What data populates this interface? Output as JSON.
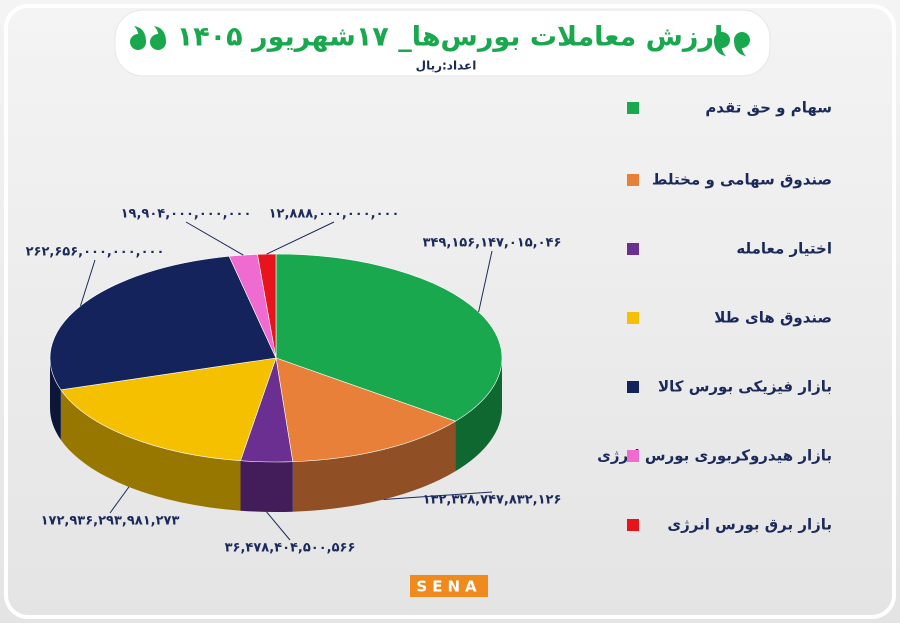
{
  "chart_data": {
    "type": "pie",
    "title": "ارزش معاملات بورس‌ها_ ۱۷شهریور ۱۴۰۵",
    "subtitle": "اعداد:ریال",
    "logo": "SENA",
    "categories": [
      "سهام و حق تقدم",
      "صندوق سهامی و مختلط",
      "اختیار معامله",
      "صندوق های طلا",
      "بازار فیزیکی بورس کالا",
      "بازار هیدروکربوری بورس انرژی",
      "بازار برق بورس انرژی"
    ],
    "values": [
      349156147015046,
      132328747832126,
      36478404500566,
      172936293981273,
      262656000000000,
      19904000000000,
      12888000000000
    ],
    "value_labels": [
      "۳۴۹,۱۵۶,۱۴۷,۰۱۵,۰۴۶",
      "۱۳۲,۳۲۸,۷۴۷,۸۳۲,۱۲۶",
      "۳۶,۴۷۸,۴۰۴,۵۰۰,۵۶۶",
      "۱۷۲,۹۳۶,۲۹۳,۹۸۱,۲۷۳",
      "۲۶۲,۶۵۶,۰۰۰,۰۰۰,۰۰۰",
      "۱۹,۹۰۴,۰۰۰,۰۰۰,۰۰۰",
      "۱۲,۸۸۸,۰۰۰,۰۰۰,۰۰۰"
    ],
    "colors": [
      "#1aa84f",
      "#e8803a",
      "#6a2f91",
      "#f5c000",
      "#14235c",
      "#f06bd0",
      "#e8141c"
    ]
  }
}
